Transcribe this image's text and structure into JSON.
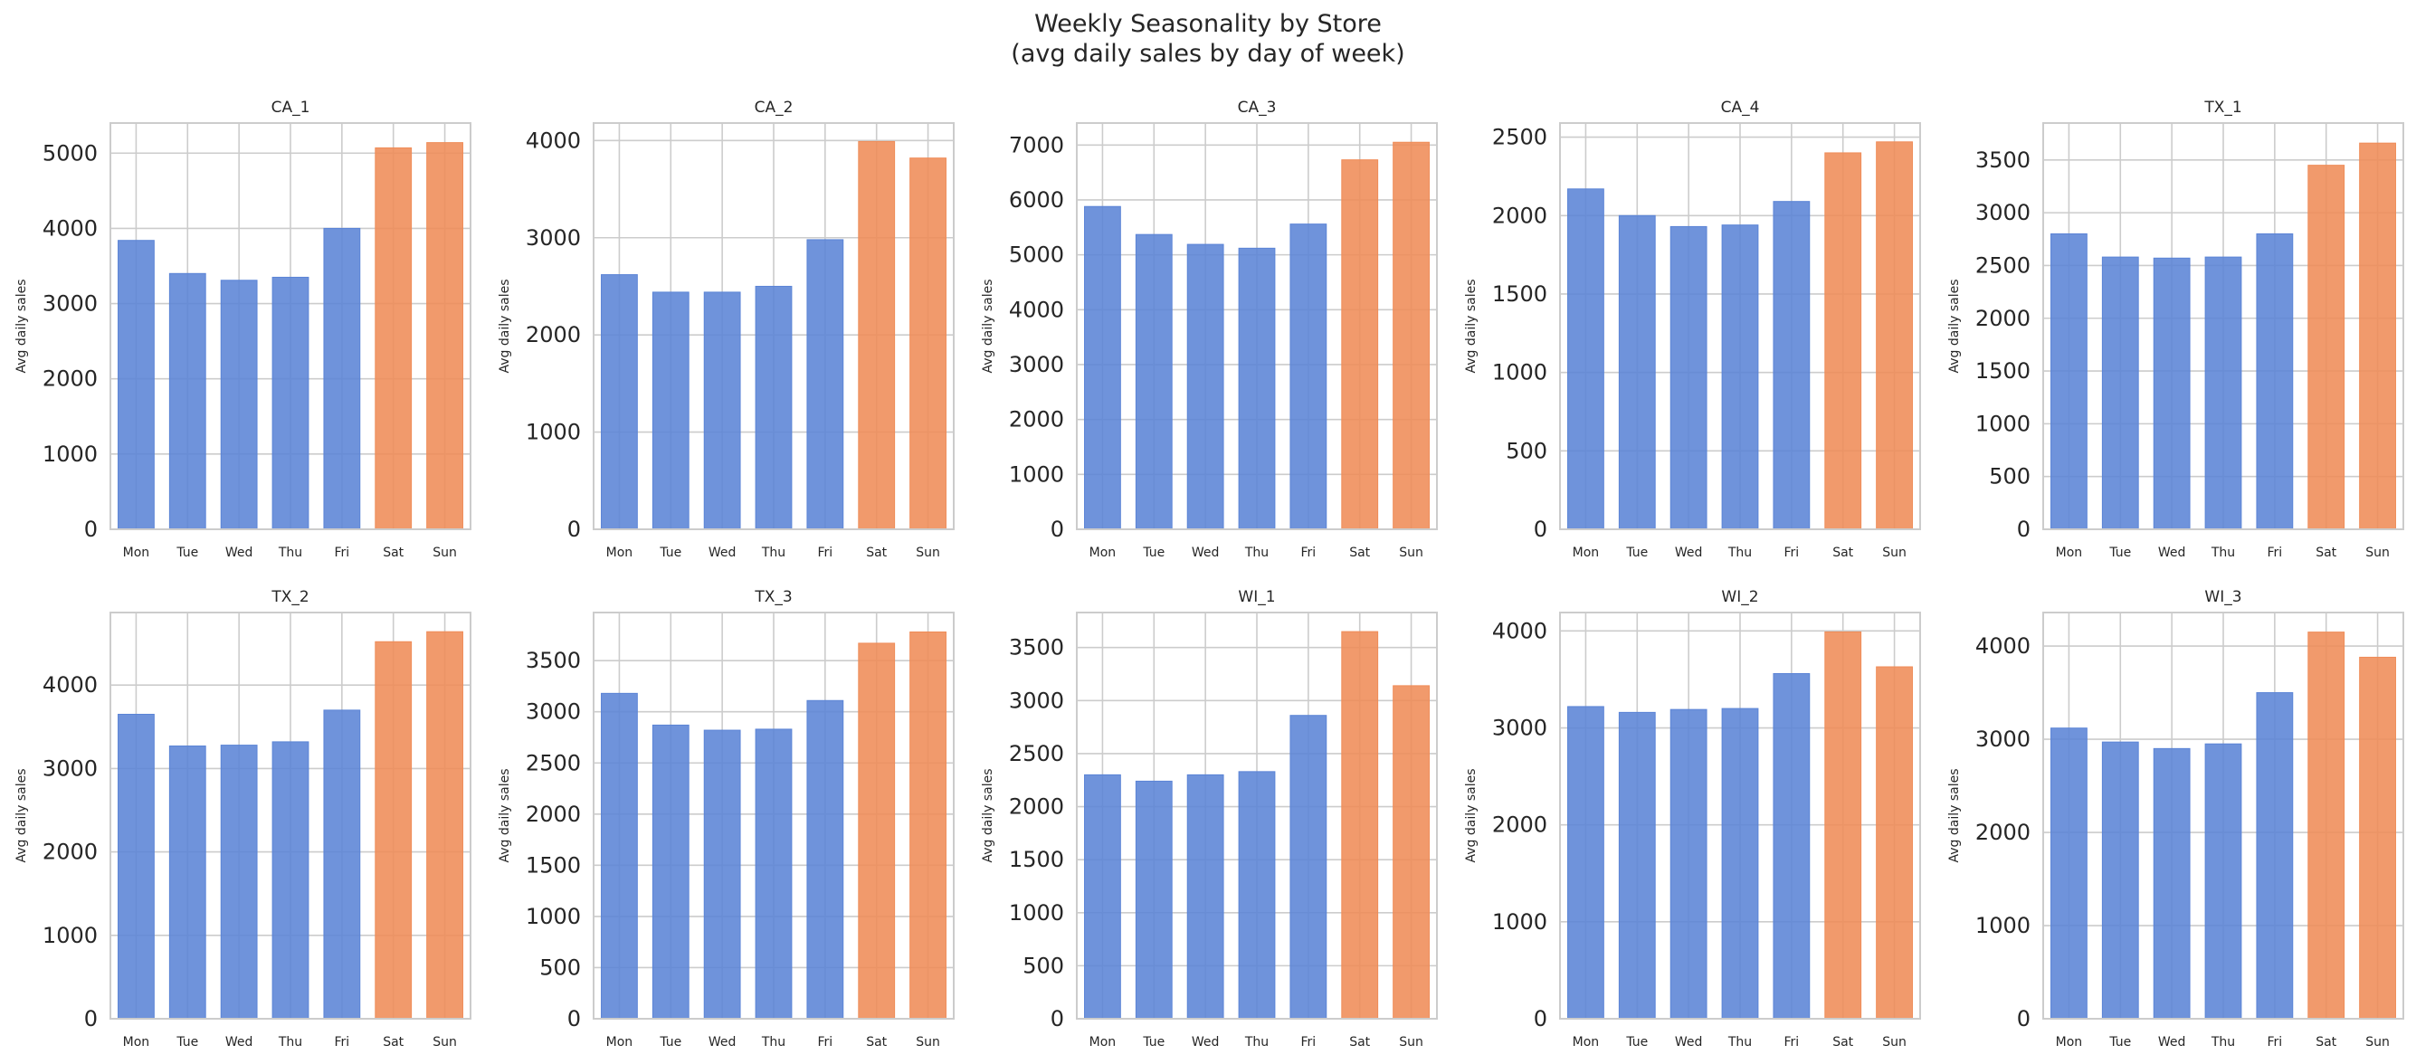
{
  "figure": {
    "title_line1": "Weekly Seasonality by Store",
    "title_line2": "(avg daily sales by day of week)"
  },
  "colors": {
    "weekday": "#5b84d6",
    "weekend": "#ef8c58",
    "grid": "#cccccc",
    "axes_edge": "#cccccc",
    "text": "#262626"
  },
  "chart_data": [
    {
      "type": "bar",
      "title": "CA_1",
      "ylabel": "Avg daily sales",
      "categories": [
        "Mon",
        "Tue",
        "Wed",
        "Thu",
        "Fri",
        "Sat",
        "Sun"
      ],
      "values": [
        3840,
        3400,
        3310,
        3350,
        4000,
        5070,
        5140
      ],
      "highlighted": [
        "Sat",
        "Sun"
      ],
      "ylim": [
        0,
        5400
      ],
      "yticks": [
        0,
        1000,
        2000,
        3000,
        4000,
        5000
      ],
      "grid": true
    },
    {
      "type": "bar",
      "title": "CA_2",
      "ylabel": "Avg daily sales",
      "categories": [
        "Mon",
        "Tue",
        "Wed",
        "Thu",
        "Fri",
        "Sat",
        "Sun"
      ],
      "values": [
        2620,
        2440,
        2440,
        2500,
        2980,
        3990,
        3820
      ],
      "highlighted": [
        "Sat",
        "Sun"
      ],
      "ylim": [
        0,
        4180
      ],
      "yticks": [
        0,
        1000,
        2000,
        3000,
        4000
      ],
      "grid": true
    },
    {
      "type": "bar",
      "title": "CA_3",
      "ylabel": "Avg daily sales",
      "categories": [
        "Mon",
        "Tue",
        "Wed",
        "Thu",
        "Fri",
        "Sat",
        "Sun"
      ],
      "values": [
        5880,
        5370,
        5190,
        5120,
        5560,
        6730,
        7050
      ],
      "highlighted": [
        "Sat",
        "Sun"
      ],
      "ylim": [
        0,
        7400
      ],
      "yticks": [
        0,
        1000,
        2000,
        3000,
        4000,
        5000,
        6000,
        7000
      ],
      "grid": true
    },
    {
      "type": "bar",
      "title": "CA_4",
      "ylabel": "Avg daily sales",
      "categories": [
        "Mon",
        "Tue",
        "Wed",
        "Thu",
        "Fri",
        "Sat",
        "Sun"
      ],
      "values": [
        2170,
        2000,
        1930,
        1940,
        2090,
        2400,
        2470
      ],
      "highlighted": [
        "Sat",
        "Sun"
      ],
      "ylim": [
        0,
        2590
      ],
      "yticks": [
        0,
        500,
        1000,
        1500,
        2000,
        2500
      ],
      "grid": true
    },
    {
      "type": "bar",
      "title": "TX_1",
      "ylabel": "Avg daily sales",
      "categories": [
        "Mon",
        "Tue",
        "Wed",
        "Thu",
        "Fri",
        "Sat",
        "Sun"
      ],
      "values": [
        2800,
        2580,
        2570,
        2580,
        2800,
        3450,
        3660
      ],
      "highlighted": [
        "Sat",
        "Sun"
      ],
      "ylim": [
        0,
        3850
      ],
      "yticks": [
        0,
        500,
        1000,
        1500,
        2000,
        2500,
        3000,
        3500
      ],
      "grid": true
    },
    {
      "type": "bar",
      "title": "TX_2",
      "ylabel": "Avg daily sales",
      "categories": [
        "Mon",
        "Tue",
        "Wed",
        "Thu",
        "Fri",
        "Sat",
        "Sun"
      ],
      "values": [
        3650,
        3270,
        3280,
        3320,
        3700,
        4520,
        4640
      ],
      "highlighted": [
        "Sat",
        "Sun"
      ],
      "ylim": [
        0,
        4870
      ],
      "yticks": [
        0,
        1000,
        2000,
        3000,
        4000
      ],
      "grid": true
    },
    {
      "type": "bar",
      "title": "TX_3",
      "ylabel": "Avg daily sales",
      "categories": [
        "Mon",
        "Tue",
        "Wed",
        "Thu",
        "Fri",
        "Sat",
        "Sun"
      ],
      "values": [
        3180,
        2870,
        2820,
        2830,
        3110,
        3670,
        3780
      ],
      "highlighted": [
        "Sat",
        "Sun"
      ],
      "ylim": [
        0,
        3970
      ],
      "yticks": [
        0,
        500,
        1000,
        1500,
        2000,
        2500,
        3000,
        3500
      ],
      "grid": true
    },
    {
      "type": "bar",
      "title": "WI_1",
      "ylabel": "Avg daily sales",
      "categories": [
        "Mon",
        "Tue",
        "Wed",
        "Thu",
        "Fri",
        "Sat",
        "Sun"
      ],
      "values": [
        2300,
        2240,
        2300,
        2330,
        2860,
        3650,
        3140
      ],
      "highlighted": [
        "Sat",
        "Sun"
      ],
      "ylim": [
        0,
        3830
      ],
      "yticks": [
        0,
        500,
        1000,
        1500,
        2000,
        2500,
        3000,
        3500
      ],
      "grid": true
    },
    {
      "type": "bar",
      "title": "WI_2",
      "ylabel": "Avg daily sales",
      "categories": [
        "Mon",
        "Tue",
        "Wed",
        "Thu",
        "Fri",
        "Sat",
        "Sun"
      ],
      "values": [
        3220,
        3160,
        3190,
        3200,
        3560,
        3990,
        3630
      ],
      "highlighted": [
        "Sat",
        "Sun"
      ],
      "ylim": [
        0,
        4190
      ],
      "yticks": [
        0,
        1000,
        2000,
        3000,
        4000
      ],
      "grid": true
    },
    {
      "type": "bar",
      "title": "WI_3",
      "ylabel": "Avg daily sales",
      "categories": [
        "Mon",
        "Tue",
        "Wed",
        "Thu",
        "Fri",
        "Sat",
        "Sun"
      ],
      "values": [
        3120,
        2970,
        2900,
        2950,
        3500,
        4150,
        3880
      ],
      "highlighted": [
        "Sat",
        "Sun"
      ],
      "ylim": [
        0,
        4360
      ],
      "yticks": [
        0,
        1000,
        2000,
        3000,
        4000
      ],
      "grid": true
    }
  ]
}
